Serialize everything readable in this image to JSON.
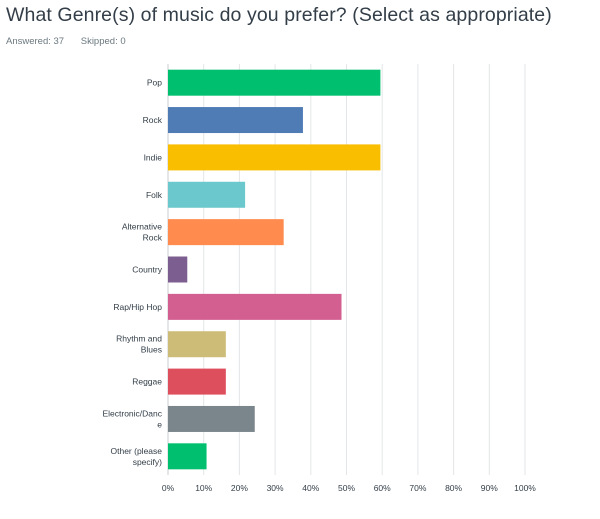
{
  "question": {
    "title": "What Genre(s) of music do you prefer? (Select as appropriate)",
    "answered": "Answered: 37",
    "skipped": "Skipped: 0"
  },
  "chart_data": {
    "type": "bar",
    "orientation": "horizontal",
    "title": "",
    "xlabel": "",
    "ylabel": "",
    "xlim": [
      0,
      100
    ],
    "grid": true,
    "categories": [
      [
        "Pop"
      ],
      [
        "Rock"
      ],
      [
        "Indie"
      ],
      [
        "Folk"
      ],
      [
        "Alternative",
        "Rock"
      ],
      [
        "Country"
      ],
      [
        "Rap/Hip Hop"
      ],
      [
        "Rhythm and",
        "Blues"
      ],
      [
        "Reggae"
      ],
      [
        "Electronic/Danc",
        "e"
      ],
      [
        "Other (please",
        "specify)"
      ]
    ],
    "values": [
      59.5,
      37.8,
      59.5,
      21.6,
      32.4,
      5.4,
      48.6,
      16.2,
      16.2,
      24.3,
      10.8
    ],
    "colors": [
      "#00bf6f",
      "#507cb6",
      "#f9be00",
      "#6bc8cd",
      "#ff8b4f",
      "#7d5e90",
      "#d25f90",
      "#cdbc77",
      "#de4f5e",
      "#7b868c",
      "#00bf6f"
    ],
    "ticks": [
      "0%",
      "10%",
      "20%",
      "30%",
      "40%",
      "50%",
      "60%",
      "70%",
      "80%",
      "90%",
      "100%"
    ]
  }
}
